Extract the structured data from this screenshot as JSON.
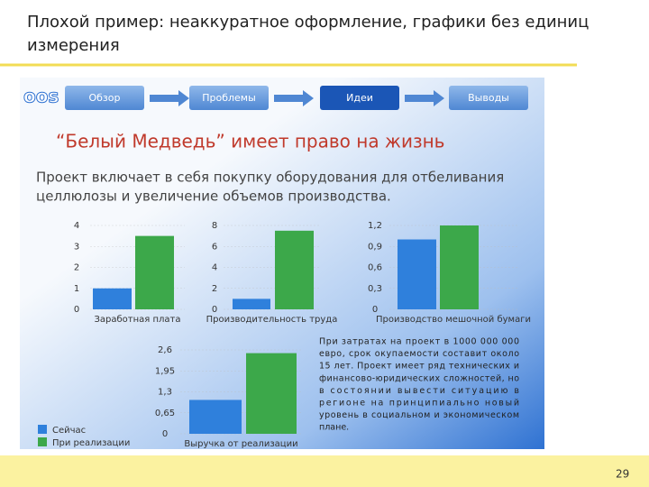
{
  "header": {
    "title": [
      "Плохой пример: неаккуратное оформление, графики без единиц",
      "измерения"
    ]
  },
  "nav": {
    "logo": "oos",
    "items": [
      "Обзор",
      "Проблемы",
      "Идеи",
      "Выводы"
    ],
    "active": 2
  },
  "slide": {
    "heading": "“Белый Медведь” имеет право на жизнь",
    "paragraph": [
      "Проект включает в себя покупку оборудования для отбеливания",
      "целлюлозы и увеличение объемов производства."
    ],
    "note": [
      "При затратах на проект в 1000 000 000",
      "евро, срок окупаемости составит около",
      "15 лет. Проект имеет ряд технических и",
      "финансово-юридических сложностей, но",
      "в состоянии вывести ситуацию в",
      "регионе на принципиально новый",
      "уровень в социальном и экономическом",
      "плане."
    ]
  },
  "legend": [
    {
      "name": "Сейчас",
      "color": "#2f80dc"
    },
    {
      "name": "При реализации",
      "color": "#3ca84a"
    }
  ],
  "chart_data": [
    {
      "type": "bar",
      "xlabel": "Заработная плата",
      "values": [
        1.0,
        3.5
      ],
      "ylim": [
        0,
        4
      ],
      "yticks": [
        0,
        1,
        2,
        3,
        4
      ]
    },
    {
      "type": "bar",
      "xlabel": "Производительность труда",
      "values": [
        1.0,
        7.5
      ],
      "ylim": [
        0,
        8
      ],
      "yticks": [
        0,
        2,
        4,
        6,
        8
      ]
    },
    {
      "type": "bar",
      "xlabel": "Производство мешочной бумаги",
      "values": [
        1.0,
        1.2
      ],
      "ylim": [
        0,
        1.2
      ],
      "yticks": [
        0,
        {
          "value": 0.3,
          "label": "0,3"
        },
        {
          "value": 0.6,
          "label": "0,6"
        },
        {
          "value": 0.9,
          "label": "0,9"
        },
        {
          "value": 1.2,
          "label": "1,2"
        }
      ]
    },
    {
      "type": "bar",
      "xlabel": "Выручка от реализации",
      "values": [
        1.05,
        2.5
      ],
      "ylim": [
        0,
        2.6
      ],
      "yticks": [
        0,
        {
          "value": 0.65,
          "label": "0,65"
        },
        {
          "value": 1.3,
          "label": "1,3"
        },
        {
          "value": 1.95,
          "label": "1,95"
        },
        {
          "value": 2.6,
          "label": "2,6"
        }
      ]
    }
  ],
  "page_number": "29"
}
